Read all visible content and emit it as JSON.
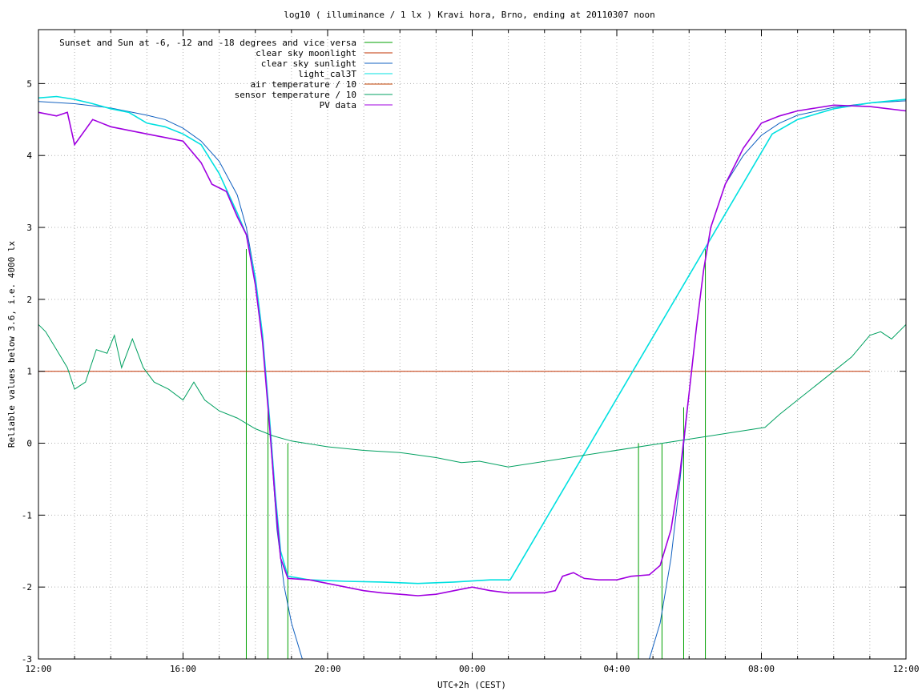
{
  "chart_data": {
    "type": "line",
    "title": "log10 ( illuminance / 1 lx ) Kravi hora, Brno, ending at 20110307 noon",
    "xlabel": "UTC+2h (CEST)",
    "ylabel": "Reliable values below 3.6, i.e. 4000 lx",
    "xlim": [
      12,
      36
    ],
    "ylim": [
      -3,
      5.75
    ],
    "xticks": [
      {
        "x": 12,
        "label": "12:00"
      },
      {
        "x": 16,
        "label": "16:00"
      },
      {
        "x": 20,
        "label": "20:00"
      },
      {
        "x": 24,
        "label": "00:00"
      },
      {
        "x": 28,
        "label": "04:00"
      },
      {
        "x": 32,
        "label": "08:00"
      },
      {
        "x": 36,
        "label": "12:00"
      }
    ],
    "yticks": [
      {
        "y": -3,
        "label": "-3"
      },
      {
        "y": -2,
        "label": "-2"
      },
      {
        "y": -1,
        "label": "-1"
      },
      {
        "y": 0,
        "label": "0"
      },
      {
        "y": 1,
        "label": "1"
      },
      {
        "y": 2,
        "label": "2"
      },
      {
        "y": 3,
        "label": "3"
      },
      {
        "y": 4,
        "label": "4"
      },
      {
        "y": 5,
        "label": "5"
      }
    ],
    "grid": true,
    "legend_position": "top-left",
    "series": [
      {
        "name": "Sunset and Sun at -6, -12 and -18 degrees and vice versa",
        "color": "#00a000",
        "style": "impulses",
        "points": [
          [
            17.75,
            2.7
          ],
          [
            18.35,
            0.6
          ],
          [
            18.9,
            0.0
          ],
          [
            19.47,
            -3.0
          ],
          [
            28.6,
            0.0
          ],
          [
            29.25,
            0.0
          ],
          [
            29.85,
            0.5
          ],
          [
            30.45,
            2.7
          ]
        ]
      },
      {
        "name": "clear sky moonlight",
        "color": "#c03000",
        "points": [
          [
            12.0,
            1.0
          ],
          [
            35.0,
            1.0
          ]
        ]
      },
      {
        "name": "clear sky sunlight",
        "color": "#1060c0",
        "points": [
          [
            12.0,
            4.75
          ],
          [
            13.0,
            4.72
          ],
          [
            14.0,
            4.66
          ],
          [
            15.0,
            4.56
          ],
          [
            15.5,
            4.5
          ],
          [
            16.0,
            4.38
          ],
          [
            16.5,
            4.2
          ],
          [
            17.0,
            3.92
          ],
          [
            17.5,
            3.45
          ],
          [
            17.75,
            3.0
          ],
          [
            18.0,
            2.3
          ],
          [
            18.2,
            1.5
          ],
          [
            18.4,
            0.2
          ],
          [
            18.6,
            -1.2
          ],
          [
            18.8,
            -2.0
          ],
          [
            19.0,
            -2.5
          ],
          [
            19.3,
            -3.0
          ],
          [
            28.9,
            -3.0
          ],
          [
            29.2,
            -2.5
          ],
          [
            29.5,
            -1.6
          ],
          [
            29.75,
            -0.5
          ],
          [
            30.0,
            0.7
          ],
          [
            30.2,
            1.6
          ],
          [
            30.4,
            2.4
          ],
          [
            30.6,
            3.0
          ],
          [
            31.0,
            3.6
          ],
          [
            31.5,
            4.0
          ],
          [
            32.0,
            4.28
          ],
          [
            32.5,
            4.45
          ],
          [
            33.0,
            4.56
          ],
          [
            34.0,
            4.67
          ],
          [
            35.0,
            4.73
          ],
          [
            36.0,
            4.76
          ]
        ]
      },
      {
        "name": "light_cal3T",
        "color": "#00e0e0",
        "points": [
          [
            12.0,
            4.8
          ],
          [
            12.5,
            4.82
          ],
          [
            13.0,
            4.78
          ],
          [
            13.5,
            4.72
          ],
          [
            14.0,
            4.65
          ],
          [
            14.5,
            4.6
          ],
          [
            15.0,
            4.45
          ],
          [
            15.5,
            4.4
          ],
          [
            16.0,
            4.3
          ],
          [
            16.5,
            4.15
          ],
          [
            17.0,
            3.75
          ],
          [
            17.5,
            3.2
          ],
          [
            17.75,
            2.9
          ],
          [
            18.0,
            2.3
          ],
          [
            18.2,
            1.5
          ],
          [
            18.4,
            0.3
          ],
          [
            18.55,
            -0.7
          ],
          [
            18.7,
            -1.5
          ],
          [
            18.9,
            -1.85
          ],
          [
            19.5,
            -1.9
          ],
          [
            20.5,
            -1.92
          ],
          [
            21.5,
            -1.93
          ],
          [
            22.5,
            -1.95
          ],
          [
            23.5,
            -1.93
          ],
          [
            24.5,
            -1.9
          ],
          [
            25.05,
            -1.9
          ],
          [
            32.3,
            4.3
          ],
          [
            33.0,
            4.5
          ],
          [
            34.0,
            4.65
          ],
          [
            35.0,
            4.73
          ],
          [
            36.0,
            4.78
          ]
        ]
      },
      {
        "name": "air temperature / 10",
        "color": "#c04000",
        "points": []
      },
      {
        "name": "sensor temperature / 10",
        "color": "#00a060",
        "points": [
          [
            12.0,
            1.65
          ],
          [
            12.2,
            1.55
          ],
          [
            12.5,
            1.3
          ],
          [
            12.8,
            1.05
          ],
          [
            13.0,
            0.75
          ],
          [
            13.3,
            0.85
          ],
          [
            13.6,
            1.3
          ],
          [
            13.9,
            1.25
          ],
          [
            14.1,
            1.5
          ],
          [
            14.3,
            1.05
          ],
          [
            14.6,
            1.45
          ],
          [
            14.9,
            1.05
          ],
          [
            15.2,
            0.85
          ],
          [
            15.6,
            0.75
          ],
          [
            16.0,
            0.6
          ],
          [
            16.3,
            0.85
          ],
          [
            16.6,
            0.6
          ],
          [
            17.0,
            0.45
          ],
          [
            17.5,
            0.35
          ],
          [
            18.0,
            0.2
          ],
          [
            18.5,
            0.1
          ],
          [
            19.0,
            0.03
          ],
          [
            20.0,
            -0.05
          ],
          [
            21.0,
            -0.1
          ],
          [
            22.0,
            -0.13
          ],
          [
            23.0,
            -0.2
          ],
          [
            23.7,
            -0.27
          ],
          [
            24.2,
            -0.25
          ],
          [
            25.0,
            -0.33
          ],
          [
            32.1,
            0.22
          ],
          [
            32.5,
            0.4
          ],
          [
            33.0,
            0.6
          ],
          [
            33.5,
            0.8
          ],
          [
            34.0,
            1.0
          ],
          [
            34.5,
            1.2
          ],
          [
            35.0,
            1.5
          ],
          [
            35.3,
            1.55
          ],
          [
            35.6,
            1.45
          ],
          [
            36.0,
            1.65
          ]
        ]
      },
      {
        "name": "PV data",
        "color": "#a000e0",
        "points": [
          [
            12.0,
            4.6
          ],
          [
            12.5,
            4.55
          ],
          [
            12.8,
            4.6
          ],
          [
            13.0,
            4.15
          ],
          [
            13.5,
            4.5
          ],
          [
            14.0,
            4.4
          ],
          [
            14.5,
            4.35
          ],
          [
            15.0,
            4.3
          ],
          [
            15.5,
            4.25
          ],
          [
            16.0,
            4.2
          ],
          [
            16.5,
            3.9
          ],
          [
            16.8,
            3.6
          ],
          [
            17.2,
            3.5
          ],
          [
            17.5,
            3.15
          ],
          [
            17.75,
            2.9
          ],
          [
            18.0,
            2.2
          ],
          [
            18.2,
            1.4
          ],
          [
            18.4,
            0.2
          ],
          [
            18.55,
            -0.8
          ],
          [
            18.7,
            -1.6
          ],
          [
            18.9,
            -1.88
          ],
          [
            19.5,
            -1.9
          ],
          [
            20.0,
            -1.95
          ],
          [
            20.5,
            -2.0
          ],
          [
            21.0,
            -2.05
          ],
          [
            21.5,
            -2.08
          ],
          [
            22.0,
            -2.1
          ],
          [
            22.5,
            -2.12
          ],
          [
            23.0,
            -2.1
          ],
          [
            23.5,
            -2.05
          ],
          [
            24.0,
            -2.0
          ],
          [
            24.5,
            -2.05
          ],
          [
            25.0,
            -2.08
          ],
          [
            25.5,
            -2.08
          ],
          [
            26.0,
            -2.08
          ],
          [
            26.3,
            -2.05
          ],
          [
            26.5,
            -1.85
          ],
          [
            26.8,
            -1.8
          ],
          [
            27.1,
            -1.88
          ],
          [
            27.5,
            -1.9
          ],
          [
            28.0,
            -1.9
          ],
          [
            28.4,
            -1.85
          ],
          [
            28.9,
            -1.83
          ],
          [
            29.2,
            -1.7
          ],
          [
            29.5,
            -1.2
          ],
          [
            29.75,
            -0.4
          ],
          [
            30.0,
            0.7
          ],
          [
            30.2,
            1.6
          ],
          [
            30.4,
            2.4
          ],
          [
            30.6,
            3.0
          ],
          [
            31.0,
            3.6
          ],
          [
            31.5,
            4.1
          ],
          [
            32.0,
            4.45
          ],
          [
            32.5,
            4.55
          ],
          [
            33.0,
            4.62
          ],
          [
            34.0,
            4.7
          ],
          [
            35.0,
            4.68
          ],
          [
            36.0,
            4.62
          ]
        ]
      }
    ]
  }
}
